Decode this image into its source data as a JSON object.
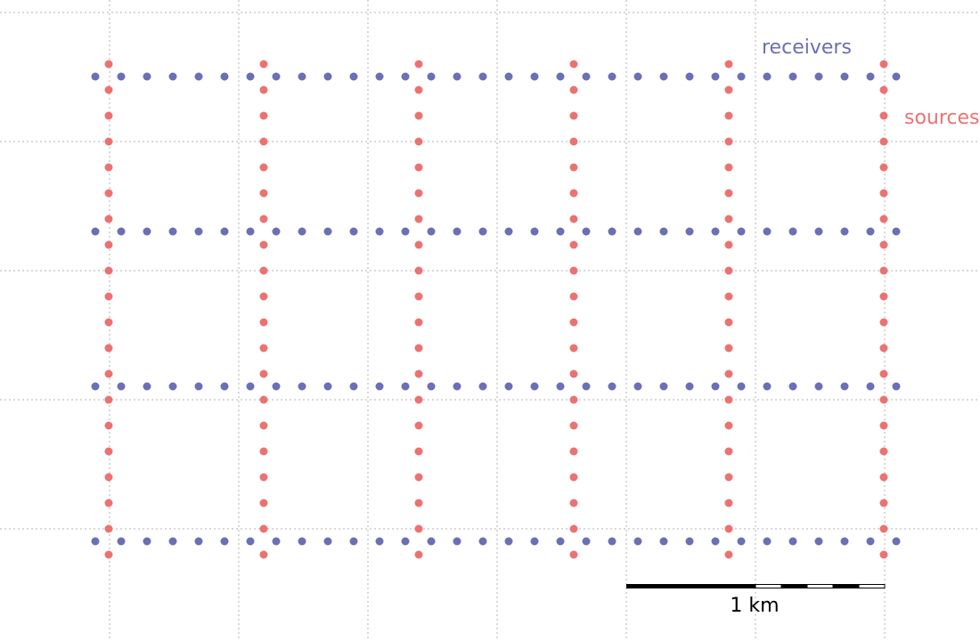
{
  "colors": {
    "receivers": "#6b6fb5",
    "sources": "#ec7272",
    "grid": "#b3b3b3",
    "scalebar": "#000000"
  },
  "legend": {
    "receivers_label": "receivers",
    "sources_label": "sources"
  },
  "scalebar": {
    "label": "1 km",
    "segments": 5
  },
  "survey": {
    "receiver_lines": 4,
    "receivers_per_line": 32,
    "source_lines": 6,
    "sources_per_line": 20
  }
}
